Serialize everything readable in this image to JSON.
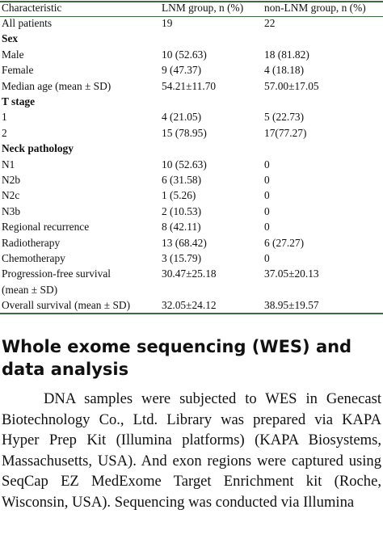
{
  "table": {
    "headers": [
      "Characteristic",
      "LNM group, n (%)",
      "non-LNM group, n (%)"
    ],
    "rows": [
      {
        "label": "All patients",
        "lnm": "19",
        "non_lnm": "22",
        "bold": false
      },
      {
        "label": "Sex",
        "lnm": "",
        "non_lnm": "",
        "bold": true
      },
      {
        "label": "Male",
        "lnm": "10 (52.63)",
        "non_lnm": "18 (81.82)",
        "bold": false
      },
      {
        "label": "Female",
        "lnm": "9 (47.37)",
        "non_lnm": "4 (18.18)",
        "bold": false
      },
      {
        "label": "Median age (mean ± SD)",
        "lnm": "54.21±11.70",
        "non_lnm": "57.00±17.05",
        "bold": false
      },
      {
        "label": "T stage",
        "lnm": "",
        "non_lnm": "",
        "bold": true
      },
      {
        "label": "1",
        "lnm": "4 (21.05)",
        "non_lnm": "5 (22.73)",
        "bold": false
      },
      {
        "label": "2",
        "lnm": "15 (78.95)",
        "non_lnm": "17(77.27)",
        "bold": false
      },
      {
        "label": "Neck pathology",
        "lnm": "",
        "non_lnm": "",
        "bold": true
      },
      {
        "label": "N1",
        "lnm": "10 (52.63)",
        "non_lnm": "0",
        "bold": false
      },
      {
        "label": "N2b",
        "lnm": "6 (31.58)",
        "non_lnm": "0",
        "bold": false
      },
      {
        "label": "N2c",
        "lnm": "1 (5.26)",
        "non_lnm": "0",
        "bold": false
      },
      {
        "label": "N3b",
        "lnm": "2 (10.53)",
        "non_lnm": "0",
        "bold": false
      },
      {
        "label": "Regional recurrence",
        "lnm": "8 (42.11)",
        "non_lnm": "0",
        "bold": false
      },
      {
        "label": "Radiotherapy",
        "lnm": "13 (68.42)",
        "non_lnm": "6 (27.27)",
        "bold": false
      },
      {
        "label": "Chemotherapy",
        "lnm": "3 (15.79)",
        "non_lnm": "0",
        "bold": false
      },
      {
        "label": "Progression-free survival",
        "lnm": "30.47±25.18",
        "non_lnm": "37.05±20.13",
        "bold": false
      },
      {
        "label": "(mean ± SD)",
        "lnm": "",
        "non_lnm": "",
        "bold": false
      },
      {
        "label": "Overall survival (mean ± SD)",
        "lnm": "32.05±24.12",
        "non_lnm": "38.95±19.57",
        "bold": false
      }
    ]
  },
  "section": {
    "heading": "Whole exome sequencing (WES) and data analysis",
    "paragraph": "DNA samples were subjected to WES in Genecast Biotechnology Co., Ltd. Library was prepared via KAPA Hyper Prep Kit (Illumina platforms) (KAPA Biosystems, Massachusetts, USA). And exon regions were captured using SeqCap EZ MedExome Target Enrichment kit (Roche, Wisconsin, USA). Sequencing was conducted via Illumina"
  }
}
